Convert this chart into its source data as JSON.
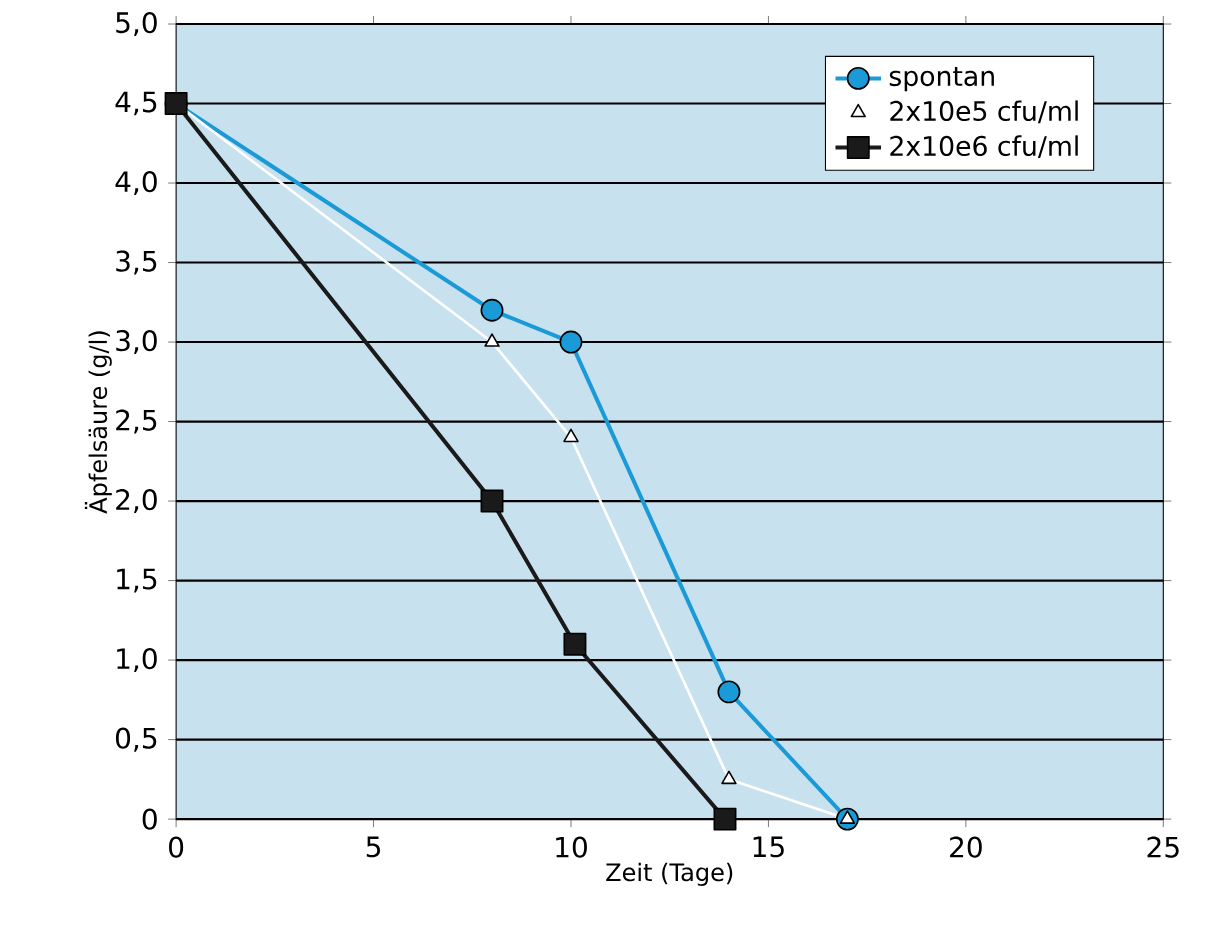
{
  "chart_data": {
    "type": "line",
    "xlabel": "Zeit (Tage)",
    "ylabel": "Äpfelsäure (g/l)",
    "xlim": [
      0,
      25
    ],
    "xticks": [
      0,
      5,
      10,
      15,
      20,
      25
    ],
    "ylim": [
      0,
      5
    ],
    "yticks": [
      0,
      {
        "value": 0.5,
        "label": "0,5"
      },
      {
        "value": 1,
        "label": "1,0"
      },
      {
        "value": 1.5,
        "label": "1,5"
      },
      {
        "value": 2,
        "label": "2,0"
      },
      {
        "value": 2.5,
        "label": "2,5"
      },
      {
        "value": 3,
        "label": "3,0"
      },
      {
        "value": 3.5,
        "label": "3,5"
      },
      {
        "value": 4,
        "label": "4,0"
      },
      {
        "value": 4.5,
        "label": "4,5"
      },
      {
        "value": 5,
        "label": "5,0"
      }
    ],
    "grid": "y",
    "legend": "top right",
    "series": [
      {
        "name": "spontan",
        "color": "#1a9ad6",
        "marker": "circle",
        "x": [
          0,
          8,
          10,
          14,
          17
        ],
        "values": [
          4.5,
          3.2,
          3.0,
          0.8,
          0
        ]
      },
      {
        "name": "2x10e5 cfu/ml",
        "color": "#ffffff",
        "marker": "triangle",
        "x": [
          0,
          8,
          10,
          14,
          17
        ],
        "values": [
          4.5,
          3.0,
          2.4,
          0.25,
          0
        ]
      },
      {
        "name": "2x10e6 cfu/ml",
        "color": "#1a1a1a",
        "marker": "square",
        "x": [
          0,
          8,
          10.1,
          13.9
        ],
        "values": [
          4.5,
          2.0,
          1.1,
          0
        ]
      }
    ]
  }
}
